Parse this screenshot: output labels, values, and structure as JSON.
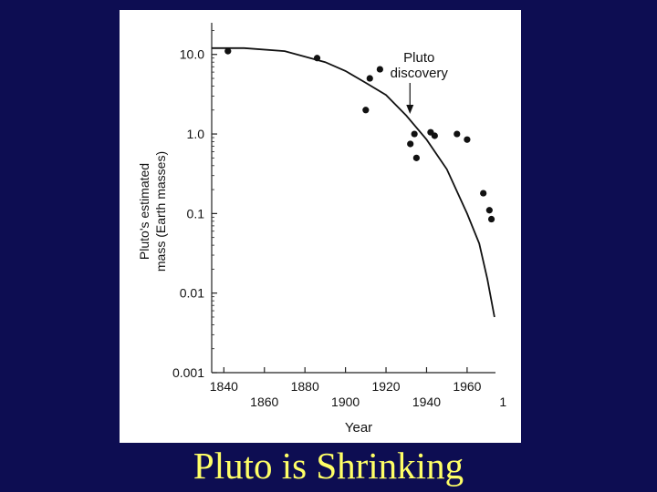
{
  "slide": {
    "title": "Pluto is Shrinking",
    "background": "#0d0d52",
    "title_color": "#ffff66"
  },
  "chart_data": {
    "type": "scatter",
    "title": "",
    "xlabel": "Year",
    "ylabel_line1": "Pluto's estimated",
    "ylabel_line2": "mass (Earth masses)",
    "y_scale": "log",
    "xlim": [
      1834,
      1974
    ],
    "ylim": [
      0.001,
      25
    ],
    "x_ticks": [
      1840,
      1860,
      1880,
      1900,
      1920,
      1940,
      1960
    ],
    "x_ticks_top_row": [
      "1840",
      "1880",
      "1920",
      "1960"
    ],
    "x_ticks_bottom_row": [
      "1860",
      "1900",
      "1940"
    ],
    "x_tick_cut": "1",
    "y_ticks": [
      0.001,
      0.01,
      0.1,
      1.0,
      10.0
    ],
    "y_tick_labels": [
      "0.001",
      "0.01",
      "0.1",
      "1.0",
      "10.0"
    ],
    "grid": false,
    "points": [
      {
        "x": 1842,
        "y": 11
      },
      {
        "x": 1886,
        "y": 9
      },
      {
        "x": 1910,
        "y": 2
      },
      {
        "x": 1912,
        "y": 5
      },
      {
        "x": 1917,
        "y": 6.5
      },
      {
        "x": 1932,
        "y": 0.75
      },
      {
        "x": 1934,
        "y": 1.0
      },
      {
        "x": 1935,
        "y": 0.5
      },
      {
        "x": 1942,
        "y": 1.05
      },
      {
        "x": 1944,
        "y": 0.95
      },
      {
        "x": 1955,
        "y": 1.0
      },
      {
        "x": 1960,
        "y": 0.85
      },
      {
        "x": 1968,
        "y": 0.18
      },
      {
        "x": 1971,
        "y": 0.11
      },
      {
        "x": 1972,
        "y": 0.085
      }
    ],
    "trend_curve": [
      {
        "x": 1834,
        "y": 12
      },
      {
        "x": 1850,
        "y": 12
      },
      {
        "x": 1870,
        "y": 11
      },
      {
        "x": 1890,
        "y": 8
      },
      {
        "x": 1900,
        "y": 6.2
      },
      {
        "x": 1910,
        "y": 4.4
      },
      {
        "x": 1920,
        "y": 3.1
      },
      {
        "x": 1930,
        "y": 1.7
      },
      {
        "x": 1940,
        "y": 0.85
      },
      {
        "x": 1950,
        "y": 0.36
      },
      {
        "x": 1960,
        "y": 0.1
      },
      {
        "x": 1966,
        "y": 0.042
      },
      {
        "x": 1970,
        "y": 0.015
      },
      {
        "x": 1973.5,
        "y": 0.005
      }
    ],
    "annotation": {
      "line1": "Pluto",
      "line2": "discovery",
      "year": 1930
    }
  }
}
